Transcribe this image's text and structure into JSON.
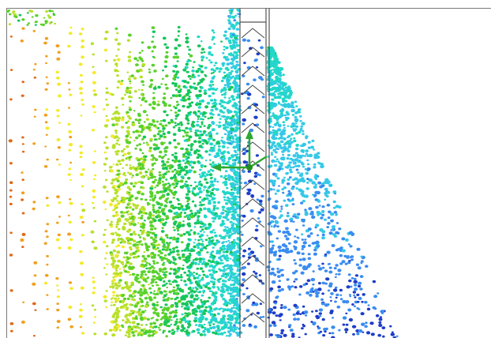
{
  "viewport": {
    "background": "#ffffff",
    "frame_color": "#7a7a7a"
  },
  "particles": {
    "colormap": [
      "#e06a1a",
      "#f0a020",
      "#f3ea2a",
      "#b8e02a",
      "#5ad12a",
      "#16c65a",
      "#22d8c8",
      "#36c8e8",
      "#3a8cf0",
      "#1e3ec8"
    ]
  },
  "wall": {
    "stroke": "#555555",
    "chevron_stroke": "#444444"
  },
  "gizmo": {
    "axis_colors": {
      "x": "#2ea82e",
      "y": "#2ea82e",
      "z": "#2ea82e"
    },
    "pivot_color": "#1f8f1f",
    "icon": "move-gizmo-icon"
  }
}
